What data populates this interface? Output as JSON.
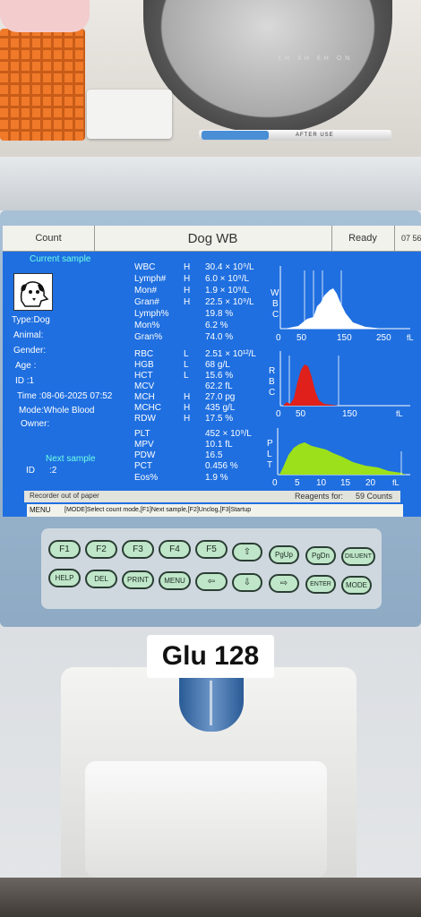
{
  "header": {
    "mode": "Count",
    "title": "Dog  WB",
    "status": "Ready",
    "time": "07 56"
  },
  "sample": {
    "heading": "Current sample",
    "type": "Type:Dog",
    "animal": "Animal:",
    "gender": "Gender:",
    "age": "Age   :",
    "id": "ID    :1",
    "time": "Time :08-06-2025 07:52",
    "mode": "Mode:Whole Blood",
    "owner": "Owner:",
    "next_heading": "Next sample",
    "next_id_label": "ID",
    "next_id_value": ":2"
  },
  "results": [
    {
      "name": "WBC",
      "flag": "H",
      "value": "30.4 × 10⁹/L"
    },
    {
      "name": "Lymph#",
      "flag": "H",
      "value": "6.0 × 10⁹/L"
    },
    {
      "name": "Mon#",
      "flag": "H",
      "value": "1.9 × 10⁹/L"
    },
    {
      "name": "Gran#",
      "flag": "H",
      "value": "22.5 × 10⁹/L"
    },
    {
      "name": "Lymph%",
      "flag": "",
      "value": "19.8 %"
    },
    {
      "name": "Mon%",
      "flag": "",
      "value": "6.2 %"
    },
    {
      "name": "Gran%",
      "flag": "",
      "value": "74.0 %"
    },
    {
      "name": "RBC",
      "flag": "L",
      "value": "2.51 × 10¹²/L"
    },
    {
      "name": "HGB",
      "flag": "L",
      "value": "68 g/L"
    },
    {
      "name": "HCT",
      "flag": "L",
      "value": "15.6 %"
    },
    {
      "name": "MCV",
      "flag": "",
      "value": "62.2 fL"
    },
    {
      "name": "MCH",
      "flag": "H",
      "value": "27.0 pg"
    },
    {
      "name": "MCHC",
      "flag": "H",
      "value": "435 g/L"
    },
    {
      "name": "RDW",
      "flag": "H",
      "value": "17.5 %"
    },
    {
      "name": "PLT",
      "flag": "",
      "value": "452 × 10⁹/L"
    },
    {
      "name": "MPV",
      "flag": "",
      "value": "10.1 fL"
    },
    {
      "name": "PDW",
      "flag": "",
      "value": "16.5"
    },
    {
      "name": "PCT",
      "flag": "",
      "value": "0.456 %"
    },
    {
      "name": "Eos%",
      "flag": "",
      "value": "1.9 %"
    }
  ],
  "histograms": {
    "wbc": {
      "axis_label": [
        "W",
        "B",
        "C"
      ],
      "ticks": [
        "0",
        "50",
        "150",
        "250"
      ],
      "unit": "fL",
      "color": "#ffffff"
    },
    "rbc": {
      "axis_label": [
        "R",
        "B",
        "C"
      ],
      "ticks": [
        "0",
        "50",
        "150"
      ],
      "unit": "fL",
      "color": "#e0201a"
    },
    "plt": {
      "axis_label": [
        "P",
        "L",
        "T"
      ],
      "ticks": [
        "0",
        "5",
        "10",
        "15",
        "20"
      ],
      "unit": "fL",
      "color": "#9be01a"
    }
  },
  "footer": {
    "message": "Recorder out of paper",
    "reagents_label": "Reagents for:",
    "reagents_value": "59 Counts",
    "menu_label": "MENU",
    "menu_help": "[MODE]Select count mode,[F1]Next sample,[F2]Unclog,[F3]Startup"
  },
  "keypad": {
    "row1": [
      "F1",
      "F2",
      "F3",
      "F4",
      "F5",
      "⇧",
      "PgUp",
      "PgDn",
      "DILUENT"
    ],
    "row2": [
      "HELP",
      "DEL",
      "PRINT",
      "MENU",
      "⇦",
      "⇩",
      "⇨",
      "ENTER",
      "MODE"
    ]
  },
  "overlay_label": "Glu 128",
  "appliance": {
    "diffuser_labels": [
      "1H",
      "3H",
      "6H",
      "ON"
    ],
    "syringe_text": "AFTER USE"
  }
}
